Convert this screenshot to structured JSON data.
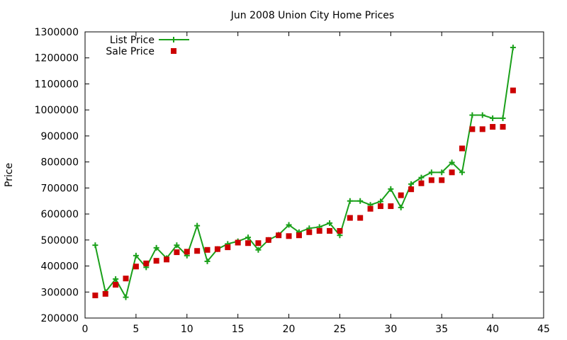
{
  "chart_data": {
    "type": "line",
    "title": "Jun 2008 Union City Home Prices",
    "xlabel": "",
    "ylabel": "Price",
    "xlim": [
      0,
      45
    ],
    "ylim": [
      200000,
      1300000
    ],
    "x_ticks": [
      0,
      5,
      10,
      15,
      20,
      25,
      30,
      35,
      40,
      45
    ],
    "y_ticks": [
      200000,
      300000,
      400000,
      500000,
      600000,
      700000,
      800000,
      900000,
      1000000,
      1100000,
      1200000,
      1300000
    ],
    "grid": false,
    "legend_position": "top-left",
    "x": [
      1,
      2,
      3,
      4,
      5,
      6,
      7,
      8,
      9,
      10,
      11,
      12,
      13,
      14,
      15,
      16,
      17,
      18,
      19,
      20,
      21,
      22,
      23,
      24,
      25,
      26,
      27,
      28,
      29,
      30,
      31,
      32,
      33,
      34,
      35,
      36,
      37,
      38,
      39,
      40,
      41,
      42
    ],
    "series": [
      {
        "name": "List Price",
        "style": "line-points",
        "marker": "plus",
        "color": "#1aa01a",
        "values": [
          480000,
          300000,
          350000,
          280000,
          440000,
          395000,
          470000,
          430000,
          480000,
          440000,
          555000,
          418000,
          465000,
          485000,
          495000,
          510000,
          462000,
          500000,
          520000,
          558000,
          530000,
          545000,
          550000,
          565000,
          518000,
          650000,
          650000,
          635000,
          648000,
          696000,
          625000,
          715000,
          740000,
          760000,
          760000,
          798000,
          760000,
          980000,
          980000,
          968000,
          968000,
          1240000
        ]
      },
      {
        "name": "Sale Price",
        "style": "points",
        "marker": "square",
        "color": "#cc0000",
        "values": [
          287000,
          293000,
          328000,
          352000,
          398000,
          410000,
          420000,
          425000,
          453000,
          455000,
          458000,
          462000,
          465000,
          472000,
          490000,
          488000,
          488000,
          500000,
          518000,
          515000,
          518000,
          530000,
          535000,
          535000,
          535000,
          585000,
          585000,
          620000,
          630000,
          630000,
          672000,
          695000,
          718000,
          730000,
          730000,
          760000,
          852000,
          926000,
          926000,
          935000,
          935000,
          1075000
        ]
      }
    ]
  }
}
